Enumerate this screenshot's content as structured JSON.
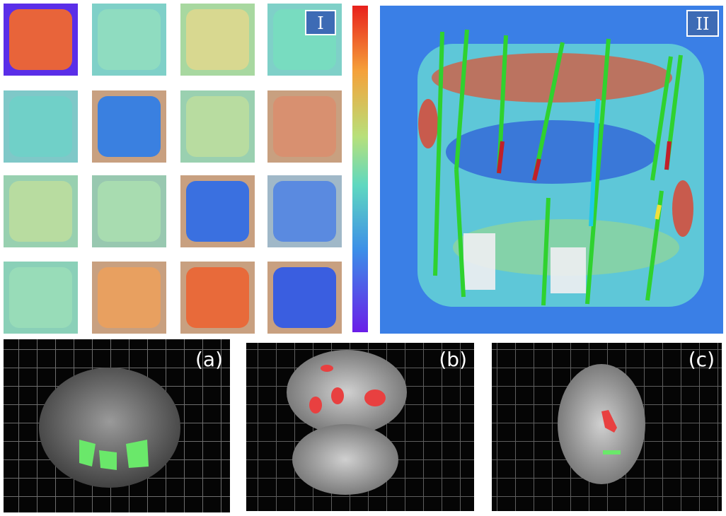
{
  "panels": {
    "grid_label": "I",
    "map_label": "II",
    "photos": [
      {
        "label": "(a)"
      },
      {
        "label": "(b)"
      },
      {
        "label": "(c)"
      }
    ]
  }
}
